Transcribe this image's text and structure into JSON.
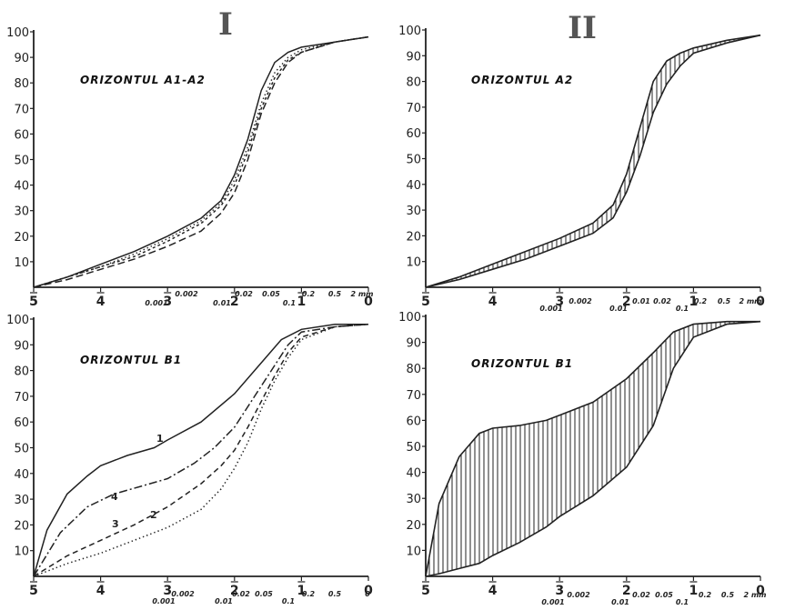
{
  "roman_labels": [
    "I",
    "II"
  ],
  "chart_data": [
    {
      "type": "line",
      "title": "ORIZONTUL A1-A2",
      "ylim": [
        0,
        100
      ],
      "xlim": [
        5,
        0
      ],
      "yticks": [
        10,
        20,
        30,
        40,
        50,
        60,
        70,
        80,
        90,
        100
      ],
      "x_major_ticks": [
        "5",
        "4",
        "3",
        "2",
        "1",
        "0"
      ],
      "x_minor_labels": [
        "0.001",
        "0.002",
        "0.01",
        "0.02",
        "0.05",
        "0.1",
        "0.2",
        "0.5",
        "2 mm"
      ],
      "series": [
        {
          "style": "solid",
          "x": [
            5,
            4.5,
            4,
            3.5,
            3,
            2.5,
            2.2,
            2,
            1.8,
            1.6,
            1.4,
            1.2,
            1,
            0.5,
            0
          ],
          "y": [
            0,
            4,
            9,
            14,
            20,
            27,
            34,
            44,
            58,
            77,
            88,
            92,
            94,
            96,
            98
          ]
        },
        {
          "style": "dotted",
          "x": [
            5,
            4.5,
            4,
            3.5,
            3,
            2.5,
            2.2,
            2,
            1.8,
            1.6,
            1.4,
            1.2,
            1,
            0.5,
            0
          ],
          "y": [
            0,
            4,
            8,
            13,
            19,
            26,
            33,
            42,
            55,
            72,
            84,
            90,
            93,
            96,
            98
          ]
        },
        {
          "style": "short-dash",
          "x": [
            5,
            4.5,
            4,
            3.5,
            3,
            2.5,
            2.2,
            2,
            1.8,
            1.6,
            1.4,
            1.2,
            1,
            0.5,
            0
          ],
          "y": [
            0,
            4,
            8,
            12,
            18,
            25,
            32,
            40,
            53,
            70,
            82,
            89,
            92,
            96,
            98
          ]
        },
        {
          "style": "long-dash",
          "x": [
            5,
            4.5,
            4,
            3.5,
            3,
            2.5,
            2.2,
            2,
            1.8,
            1.6,
            1.4,
            1.2,
            1,
            0.5,
            0
          ],
          "y": [
            0,
            3,
            7,
            11,
            16,
            22,
            29,
            37,
            50,
            68,
            80,
            88,
            92,
            96,
            98
          ]
        }
      ]
    },
    {
      "type": "area",
      "title": "ORIZONTUL A2",
      "ylim": [
        0,
        100
      ],
      "xlim": [
        5,
        0
      ],
      "yticks": [
        10,
        20,
        30,
        40,
        50,
        60,
        70,
        80,
        90,
        100
      ],
      "x_major_ticks": [
        "5",
        "4",
        "3",
        "2",
        "1",
        "0"
      ],
      "x_minor_labels": [
        "0.001",
        "0.002",
        "0.01",
        "0.01",
        "0.02",
        "0.1",
        "0.2",
        "0.5",
        "2 mm"
      ],
      "band": {
        "x": [
          5,
          4.5,
          4,
          3.5,
          3,
          2.5,
          2.2,
          2,
          1.8,
          1.6,
          1.4,
          1.2,
          1,
          0.5,
          0
        ],
        "upper": [
          0,
          4,
          9,
          14,
          19,
          25,
          32,
          44,
          62,
          80,
          88,
          91,
          93,
          96,
          98
        ],
        "lower": [
          0,
          3,
          7,
          11,
          16,
          21,
          27,
          37,
          51,
          68,
          79,
          86,
          91,
          95,
          98
        ]
      }
    },
    {
      "type": "line",
      "title": "ORIZONTUL B1",
      "ylim": [
        0,
        100
      ],
      "xlim": [
        5,
        0
      ],
      "yticks": [
        10,
        20,
        30,
        40,
        50,
        60,
        70,
        80,
        90,
        100
      ],
      "x_major_ticks": [
        "5",
        "4",
        "3",
        "2",
        "1",
        "0"
      ],
      "x_minor_labels": [
        "0.001",
        "0.002",
        "0.01",
        "0.02",
        "0.05",
        "0.1",
        "0.2",
        "0.5",
        "0"
      ],
      "curve_labels": [
        "1",
        "2",
        "3",
        "4"
      ],
      "series": [
        {
          "name": "1",
          "style": "solid",
          "x": [
            5,
            4.8,
            4.5,
            4.2,
            4,
            3.6,
            3.2,
            3,
            2.5,
            2,
            1.6,
            1.3,
            1,
            0.5,
            0
          ],
          "y": [
            0,
            18,
            32,
            39,
            43,
            47,
            50,
            53,
            60,
            71,
            83,
            92,
            96,
            98,
            98
          ]
        },
        {
          "name": "2",
          "style": "dotted",
          "x": [
            5,
            4.5,
            4,
            3.5,
            3,
            2.5,
            2.2,
            2,
            1.8,
            1.6,
            1.4,
            1.2,
            1,
            0.5,
            0
          ],
          "y": [
            0,
            5,
            9,
            14,
            19,
            26,
            34,
            42,
            52,
            65,
            76,
            85,
            92,
            97,
            98
          ]
        },
        {
          "name": "3",
          "style": "dashed",
          "x": [
            5,
            4.5,
            4,
            3.5,
            3,
            2.5,
            2.2,
            2,
            1.8,
            1.6,
            1.4,
            1.2,
            1,
            0.5,
            0
          ],
          "y": [
            0,
            8,
            14,
            20,
            27,
            36,
            43,
            49,
            58,
            68,
            78,
            87,
            93,
            97,
            98
          ]
        },
        {
          "name": "4",
          "style": "dash-dot",
          "x": [
            5,
            4.6,
            4.2,
            3.8,
            3.4,
            3,
            2.6,
            2.3,
            2,
            1.7,
            1.4,
            1.2,
            1,
            0.5,
            0
          ],
          "y": [
            0,
            17,
            27,
            32,
            35,
            38,
            44,
            50,
            58,
            70,
            82,
            90,
            95,
            97,
            98
          ]
        }
      ]
    },
    {
      "type": "area",
      "title": "ORIZONTUL B1",
      "ylim": [
        0,
        100
      ],
      "xlim": [
        5,
        0
      ],
      "yticks": [
        10,
        20,
        30,
        40,
        50,
        60,
        70,
        80,
        90,
        100
      ],
      "x_major_ticks": [
        "5",
        "4",
        "3",
        "2",
        "1",
        "0"
      ],
      "x_minor_labels": [
        "0.001",
        "0.002",
        "0.01",
        "0.02",
        "0.05",
        "0.1",
        "0.2",
        "0.5",
        "2 mm"
      ],
      "band": {
        "x": [
          5,
          4.8,
          4.5,
          4.2,
          4,
          3.6,
          3.2,
          3,
          2.5,
          2,
          1.6,
          1.3,
          1,
          0.5,
          0
        ],
        "upper": [
          0,
          28,
          46,
          55,
          57,
          58,
          60,
          62,
          67,
          76,
          86,
          94,
          97,
          98,
          98
        ],
        "lower": [
          0,
          1,
          3,
          5,
          8,
          13,
          19,
          23,
          31,
          42,
          58,
          80,
          92,
          97,
          98
        ]
      }
    }
  ]
}
